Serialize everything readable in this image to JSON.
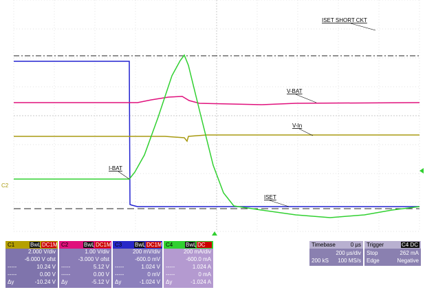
{
  "trace_labels": [
    "ISET SHORT CKT",
    "V-BAT",
    "V-In",
    "I-BAT",
    "ISET"
  ],
  "ground_marker": "C2",
  "channels": [
    {
      "name": "C1",
      "tags": [
        "BwL",
        "DC1M"
      ],
      "rows": [
        {
          "value": "2.000 V/div"
        },
        {
          "value": "-6.000 V ofst"
        },
        {
          "label": "-----",
          "value": "10.24 V"
        },
        {
          "label": "-----",
          "value": "0.00 V"
        },
        {
          "label": "Δy",
          "value": "-10.24 V"
        }
      ]
    },
    {
      "name": "C2",
      "tags": [
        "BwL",
        "DC1M"
      ],
      "rows": [
        {
          "value": "1.00 V/div"
        },
        {
          "value": "-3.000 V ofst"
        },
        {
          "label": "-----",
          "value": "5.12 V"
        },
        {
          "label": "-----",
          "value": "0.00 V"
        },
        {
          "label": "Δy",
          "value": "-5.12 V"
        }
      ]
    },
    {
      "name": "C3",
      "tags": [
        "BwL",
        "DC1M"
      ],
      "rows": [
        {
          "value": "200 mV/div"
        },
        {
          "value": "-600.0 mV"
        },
        {
          "label": "-----",
          "value": "1.024 V"
        },
        {
          "label": "-----",
          "value": "0 mV"
        },
        {
          "label": "Δy",
          "value": "-1.024 V"
        }
      ]
    },
    {
      "name": "C4",
      "tags": [
        "BwL",
        "DC"
      ],
      "rows": [
        {
          "value": "200 mA/div"
        },
        {
          "value": "-600.0 mA"
        },
        {
          "label": "-----",
          "value": "1.024 A"
        },
        {
          "label": "-----",
          "value": "0 mA"
        },
        {
          "label": "Δy",
          "value": "-1.024 A"
        }
      ]
    }
  ],
  "timebase": {
    "title": "Timebase",
    "delay": "0 µs",
    "scale": "200 µs/div",
    "samples": "200 kS",
    "rate": "100 MS/s"
  },
  "trigger": {
    "title": "Trigger",
    "source": "C4 DC",
    "mode": "Stop",
    "level": "262 mA",
    "type": "Edge",
    "slope": "Negative"
  }
}
